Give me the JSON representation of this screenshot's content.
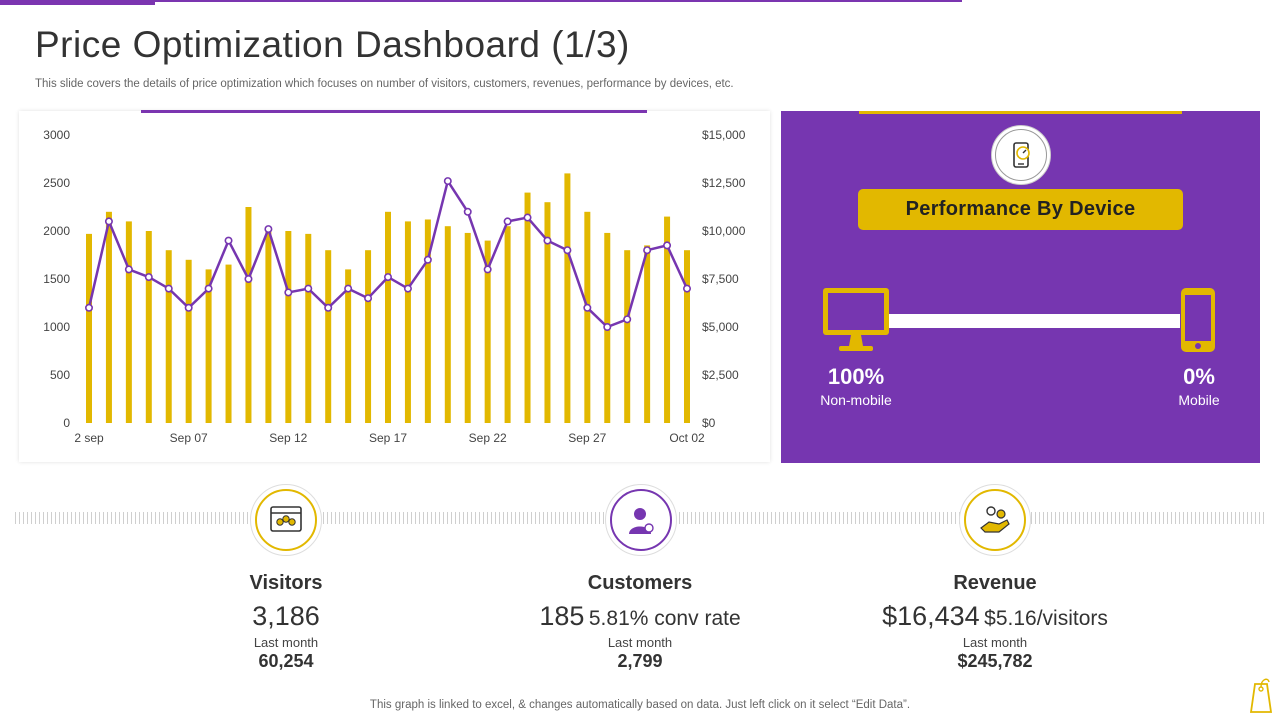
{
  "header": {
    "title": "Price Optimization Dashboard (1/3)",
    "subtitle": "This slide covers the details of price optimization which focuses on number of visitors, customers, revenues, performance by devices, etc."
  },
  "colors": {
    "purple": "#7636b0",
    "gold": "#e2b800"
  },
  "chart_data": {
    "type": "bar",
    "x_tick_labels": [
      "2 sep",
      "Sep 07",
      "Sep 12",
      "Sep 17",
      "Sep 22",
      "Sep 27",
      "Oct 02"
    ],
    "y_left_ticks": [
      "0",
      "500",
      "1000",
      "1500",
      "2000",
      "2500",
      "3000"
    ],
    "y_right_ticks": [
      "$0",
      "$2,500",
      "$5,000",
      "$7,500",
      "$10,000",
      "$12,500",
      "$15,000"
    ],
    "ylim_left": [
      0,
      3000
    ],
    "ylim_right": [
      0,
      15000
    ],
    "grid": false,
    "series": [
      {
        "type": "bar",
        "axis": "left",
        "color": "#e2b800",
        "values": [
          1970,
          2200,
          2100,
          2000,
          1800,
          1700,
          1600,
          1650,
          2250,
          2000,
          2000,
          1970,
          1800,
          1600,
          1800,
          2200,
          2100,
          2120,
          2050,
          1980,
          1900,
          2050,
          2400,
          2300,
          2600,
          2200,
          1980,
          1800,
          1850,
          2150,
          1800
        ]
      },
      {
        "type": "line",
        "axis": "right",
        "color": "#7636b0",
        "values": [
          6000,
          10500,
          8000,
          7600,
          7000,
          6000,
          7000,
          9500,
          7500,
          10100,
          6800,
          7000,
          6000,
          7000,
          6500,
          7600,
          7000,
          8500,
          12600,
          11000,
          8000,
          10500,
          10700,
          9500,
          9000,
          6000,
          5000,
          5400,
          9000,
          9250,
          7000
        ]
      }
    ]
  },
  "device": {
    "title": "Performance By Device",
    "non_mobile_pct": "100%",
    "non_mobile_label": "Non-mobile",
    "mobile_pct": "0%",
    "mobile_label": "Mobile",
    "non_mobile_share": 1.0
  },
  "kpis": {
    "visitors": {
      "title": "Visitors",
      "value": "3,186",
      "last_month_label": "Last month",
      "last_month_value": "60,254"
    },
    "customers": {
      "title": "Customers",
      "value": "185",
      "extra": "5.81% conv rate",
      "last_month_label": "Last month",
      "last_month_value": "2,799"
    },
    "revenue": {
      "title": "Revenue",
      "value": "$16,434",
      "extra": "$5.16/visitors",
      "last_month_label": "Last month",
      "last_month_value": "$245,782"
    }
  },
  "footnote": "This graph is linked to excel, & changes automatically based on data. Just left click on it select “Edit Data”."
}
